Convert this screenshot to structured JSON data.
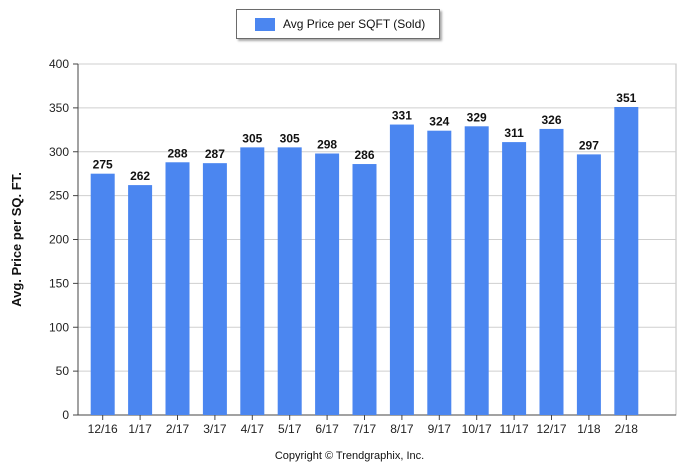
{
  "chart_data": {
    "type": "bar",
    "title": "",
    "xlabel": "",
    "ylabel": "Avg. Price per SQ. FT.",
    "ylim": [
      0,
      400
    ],
    "yticks": [
      0,
      50,
      100,
      150,
      200,
      250,
      300,
      350,
      400
    ],
    "grid": true,
    "legend_position": "top-center",
    "series": [
      {
        "name": "Avg Price per SQFT (Sold)",
        "color": "#4b86f0",
        "values": [
          275,
          262,
          288,
          287,
          305,
          305,
          298,
          286,
          331,
          324,
          329,
          311,
          326,
          297,
          351
        ]
      }
    ],
    "categories": [
      "12/16",
      "1/17",
      "2/17",
      "3/17",
      "4/17",
      "5/17",
      "6/17",
      "7/17",
      "8/17",
      "9/17",
      "10/17",
      "11/17",
      "12/17",
      "1/18",
      "2/18"
    ]
  },
  "footer": {
    "copyright": "Copyright © Trendgraphix, Inc."
  }
}
